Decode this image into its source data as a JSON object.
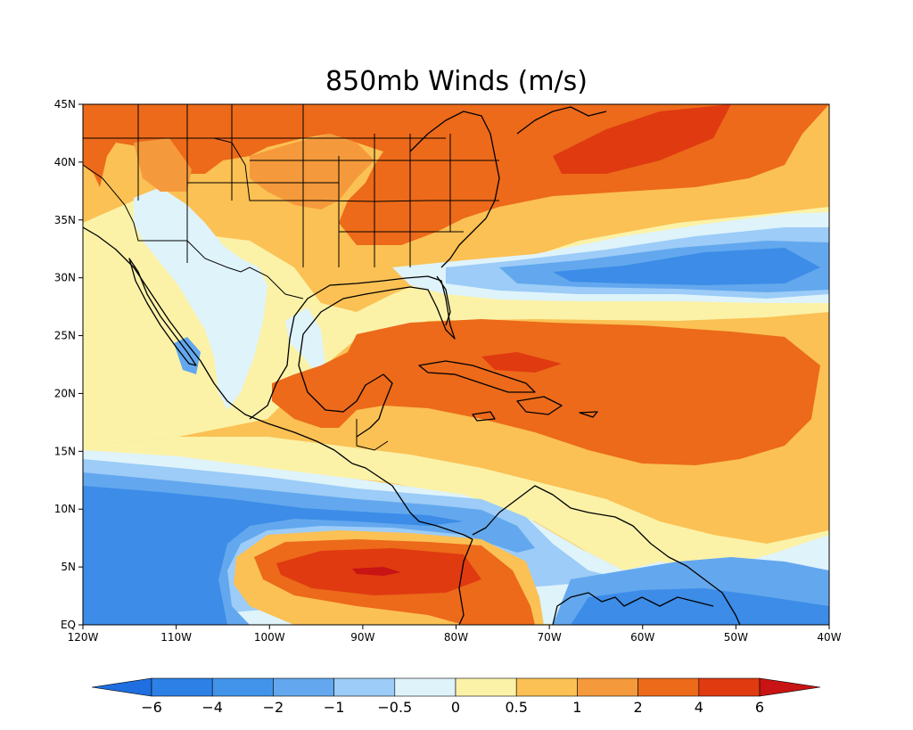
{
  "title": "850mb Winds (m/s)",
  "map": {
    "projection": "lat-lon",
    "lon_range": [
      -120,
      -40
    ],
    "lat_range": [
      0,
      45
    ],
    "x_ticks": [
      "120W",
      "110W",
      "100W",
      "90W",
      "80W",
      "70W",
      "60W",
      "50W",
      "40W"
    ],
    "y_ticks": [
      "EQ",
      "5N",
      "10N",
      "15N",
      "20N",
      "25N",
      "30N",
      "35N",
      "40N",
      "45N"
    ]
  },
  "colorbar": {
    "levels": [
      "-6",
      "-4",
      "-2",
      "-1",
      "-0.5",
      "0",
      "0.5",
      "1",
      "2",
      "4",
      "6"
    ],
    "colors": [
      "#1f6fe0",
      "#2d80e6",
      "#4294ea",
      "#63a8ee",
      "#9cccf7",
      "#dff3fb",
      "#fbf2a8",
      "#fbc154",
      "#f59a3c",
      "#ec6a1a",
      "#e03a10",
      "#c81414"
    ]
  },
  "colors": {
    "neg_strong": "#3c8ce8",
    "neg_mid": "#63a8ee",
    "neg_weak": "#9cccf7",
    "near_zero": "#dff3fb",
    "pos_weak": "#fbf2a8",
    "pos_mid": "#fbc154",
    "pos_strong": "#f59a3c",
    "pos_vstrong": "#ec6a1a",
    "pos_max": "#e03a10",
    "pos_extreme": "#c81414"
  }
}
